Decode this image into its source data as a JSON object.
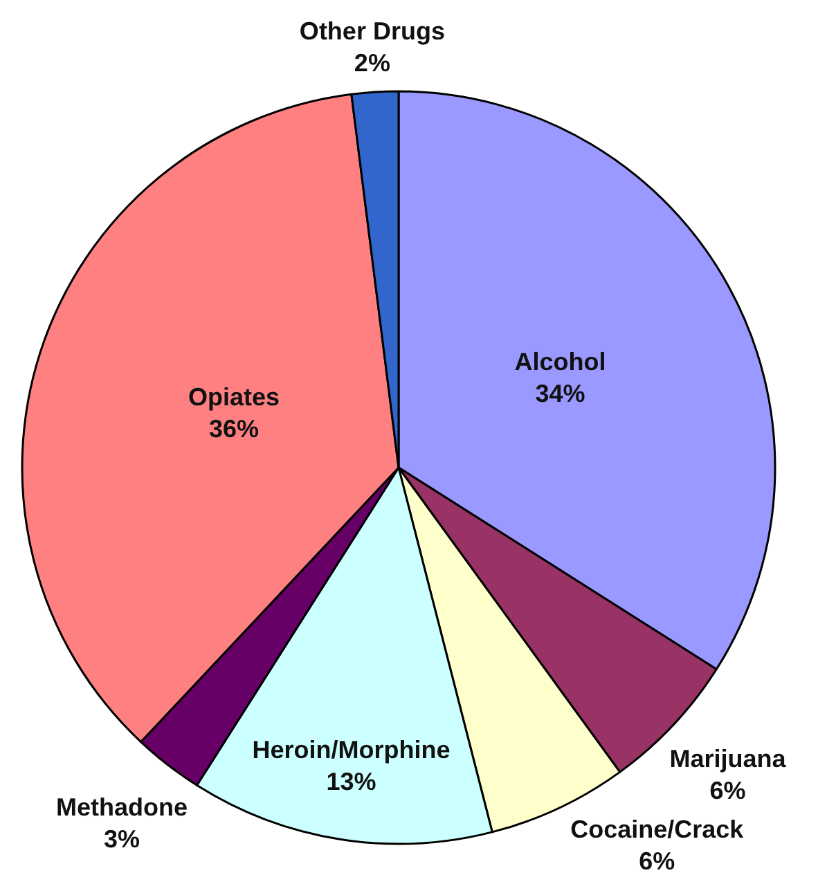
{
  "chart_data": {
    "type": "pie",
    "categories": [
      "Alcohol",
      "Marijuana",
      "Cocaine/Crack",
      "Heroin/Morphine",
      "Methadone",
      "Opiates",
      "Other Drugs"
    ],
    "values": [
      34,
      6,
      6,
      13,
      3,
      36,
      2
    ],
    "colors": [
      "#9999ff",
      "#993366",
      "#ffffcc",
      "#ccffff",
      "#660066",
      "#ff8080",
      "#3366cc"
    ],
    "value_labels": [
      "34%",
      "6%",
      "6%",
      "13%",
      "3%",
      "36%",
      "2%"
    ]
  }
}
